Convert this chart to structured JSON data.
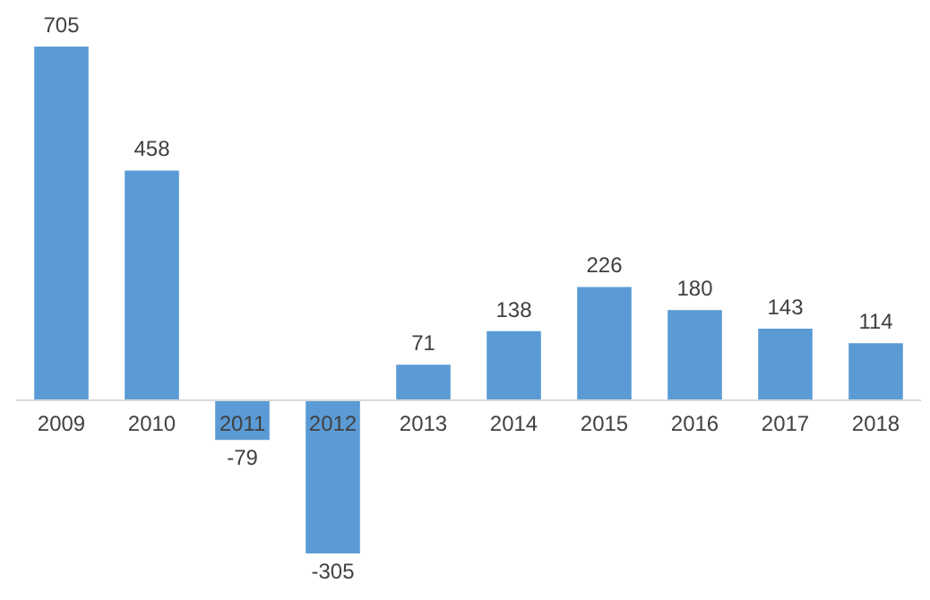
{
  "chart_data": {
    "type": "bar",
    "categories": [
      "2009",
      "2010",
      "2011",
      "2012",
      "2013",
      "2014",
      "2015",
      "2016",
      "2017",
      "2018"
    ],
    "values": [
      705,
      458,
      -79,
      -305,
      71,
      138,
      226,
      180,
      143,
      114
    ],
    "color": "#5b9bd5",
    "data_labels": true
  }
}
